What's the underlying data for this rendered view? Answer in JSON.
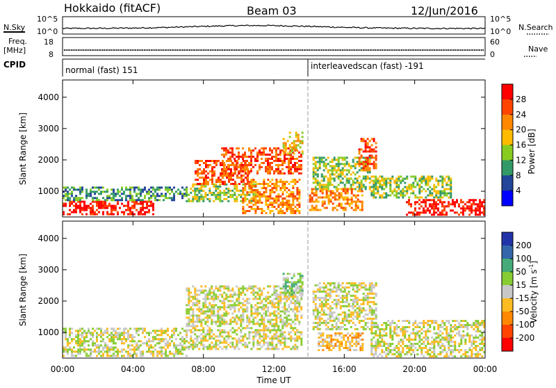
{
  "header": {
    "station": "Hokkaido (fitACF)",
    "beam": "Beam 03",
    "date": "12/Jun/2016"
  },
  "top_panels": {
    "nsky_label": "N.Sky",
    "nsky_ticks": [
      "10^5",
      "10^0"
    ],
    "nsky_right_ticks": [
      "10^5",
      "10^0"
    ],
    "nsearch_label": "N.Search",
    "freq_label_1": "Freq.",
    "freq_label_2": "[MHz]",
    "freq_ticks": [
      "18",
      "8"
    ],
    "nave_ticks": [
      "60",
      "0"
    ],
    "nave_label": "Nave",
    "cpid_label": "CPID",
    "cpid_segments": [
      {
        "label": "normal (fast) 151",
        "start_hour": 0,
        "end_hour": 14.0
      },
      {
        "label": "interleavedscan (fast) -191",
        "start_hour": 14.0,
        "end_hour": 24
      }
    ]
  },
  "chart_data": [
    {
      "type": "heatmap",
      "panel": "power",
      "xlabel": "Time UT",
      "ylabel": "Slant Range [km]",
      "x_range_hours": [
        0,
        24
      ],
      "ylim": [
        180,
        4550
      ],
      "yticks": [
        1000,
        2000,
        3000,
        4000
      ],
      "colorbar_label": "Power [dB]",
      "colorbar_ticks": [
        "28",
        "24",
        "20",
        "16",
        "12",
        "8",
        "4"
      ],
      "colorbar_colors": [
        "#ff0000",
        "#ff4400",
        "#ff8800",
        "#ffbb00",
        "#88cc22",
        "#339966",
        "#224499",
        "#0000ff"
      ],
      "echo_regions": [
        {
          "t0": 0.0,
          "t1": 5.2,
          "r0": 260,
          "r1": 700,
          "level": 0
        },
        {
          "t0": 0.0,
          "t1": 7.0,
          "r0": 700,
          "r1": 1150,
          "level": 5
        },
        {
          "t0": 7.0,
          "t1": 11.0,
          "r0": 700,
          "r1": 1250,
          "level": 4
        },
        {
          "t0": 7.5,
          "t1": 10.5,
          "r0": 1250,
          "r1": 2000,
          "level": 1
        },
        {
          "t0": 9.0,
          "t1": 13.6,
          "r0": 1600,
          "r1": 2400,
          "level": 1
        },
        {
          "t0": 10.2,
          "t1": 13.5,
          "r0": 300,
          "r1": 1400,
          "level": 2
        },
        {
          "t0": 12.5,
          "t1": 13.6,
          "r0": 2200,
          "r1": 2900,
          "level": 3
        },
        {
          "t0": 14.2,
          "t1": 17.5,
          "r0": 1100,
          "r1": 2100,
          "level": 4
        },
        {
          "t0": 14.0,
          "t1": 17.0,
          "r0": 400,
          "r1": 1100,
          "level": 2
        },
        {
          "t0": 16.8,
          "t1": 17.8,
          "r0": 1700,
          "r1": 2700,
          "level": 1
        },
        {
          "t0": 17.5,
          "t1": 22.0,
          "r0": 800,
          "r1": 1500,
          "level": 4
        },
        {
          "t0": 19.5,
          "t1": 24.0,
          "r0": 260,
          "r1": 750,
          "level": 0
        }
      ]
    },
    {
      "type": "heatmap",
      "panel": "velocity",
      "xlabel": "Time UT",
      "ylabel": "Slant Range [km]",
      "x_range_hours": [
        0,
        24
      ],
      "ylim": [
        180,
        4550
      ],
      "yticks": [
        1000,
        2000,
        3000,
        4000
      ],
      "xticks": [
        "00:00",
        "04:00",
        "08:00",
        "12:00",
        "16:00",
        "20:00",
        "00:00"
      ],
      "colorbar_label": "Velocity [m s-1]",
      "colorbar_ticks": [
        "200",
        "100",
        "50",
        "15",
        "-15",
        "-50",
        "-100",
        "-200"
      ],
      "colorbar_colors": [
        "#2233aa",
        "#3366aa",
        "#44aa77",
        "#88cc33",
        "#c8c8c8",
        "#ffbb22",
        "#ff8800",
        "#ff4400",
        "#ff0000"
      ],
      "echo_regions": [
        {
          "t0": 0.0,
          "t1": 7.0,
          "r0": 260,
          "r1": 1150,
          "level": 4
        },
        {
          "t0": 7.0,
          "t1": 13.6,
          "r0": 500,
          "r1": 2500,
          "level": 4
        },
        {
          "t0": 12.5,
          "t1": 13.6,
          "r0": 2200,
          "r1": 2900,
          "level": 3
        },
        {
          "t0": 14.2,
          "t1": 17.8,
          "r0": 1100,
          "r1": 2600,
          "level": 4
        },
        {
          "t0": 14.5,
          "t1": 17.0,
          "r0": 450,
          "r1": 1000,
          "level": 5
        },
        {
          "t0": 17.5,
          "t1": 24.0,
          "r0": 260,
          "r1": 1400,
          "level": 4
        }
      ]
    }
  ]
}
